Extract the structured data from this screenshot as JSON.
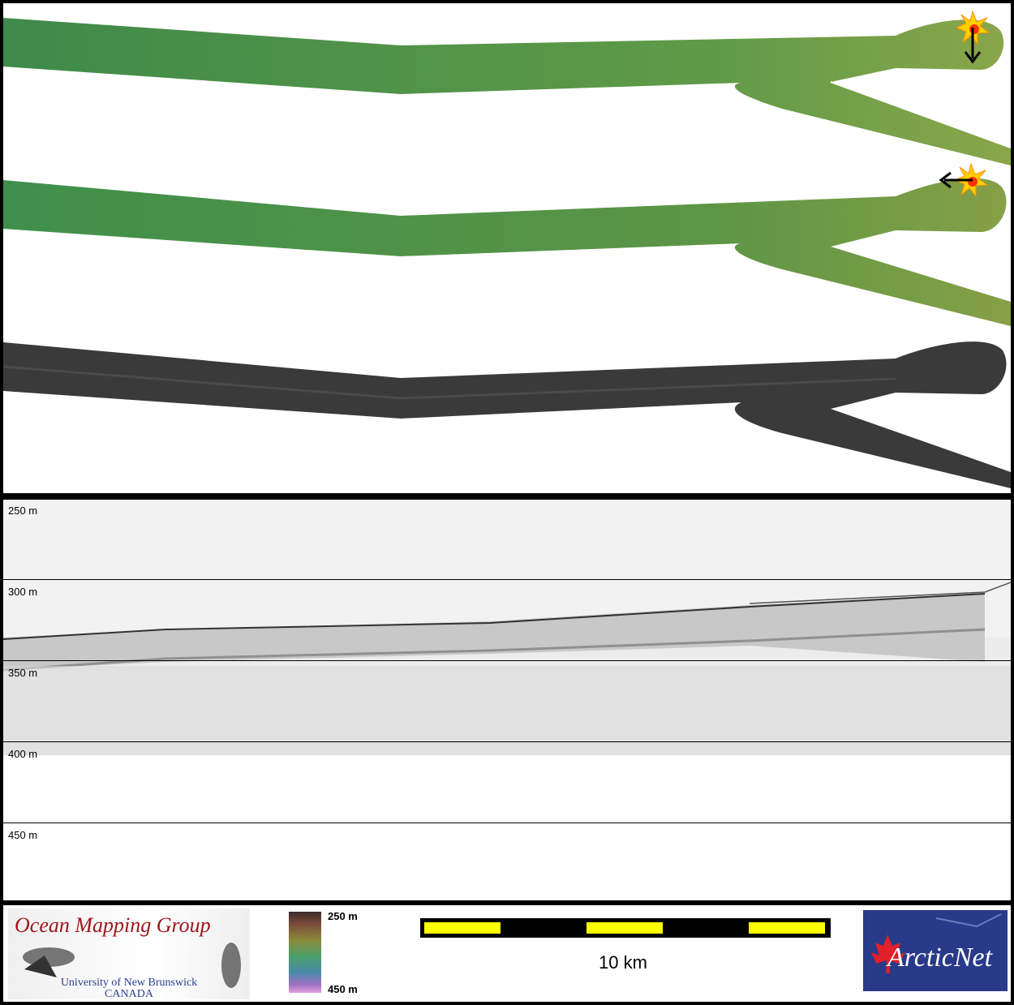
{
  "profile": {
    "depth_labels": [
      "250 m",
      "300 m",
      "350 m",
      "400 m",
      "450 m"
    ]
  },
  "legend": {
    "logo_title": "Ocean Mapping Group",
    "logo_subtitle_1": "University of New Brunswick",
    "logo_subtitle_2": "CANADA",
    "colorbar_top": "250 m",
    "colorbar_bottom": "450 m",
    "scale_label": "10 km",
    "arcticnet_logo": "ArcticNet"
  },
  "colors": {
    "bathy_green_dark": "#3f8a4a",
    "bathy_green_light": "#7aa24a",
    "backscatter": "#3a3a3a",
    "scale_bar_yellow": "#ffff00"
  },
  "icons": [
    "sun-marker-icon",
    "arrow-down-icon",
    "arrow-left-icon"
  ]
}
